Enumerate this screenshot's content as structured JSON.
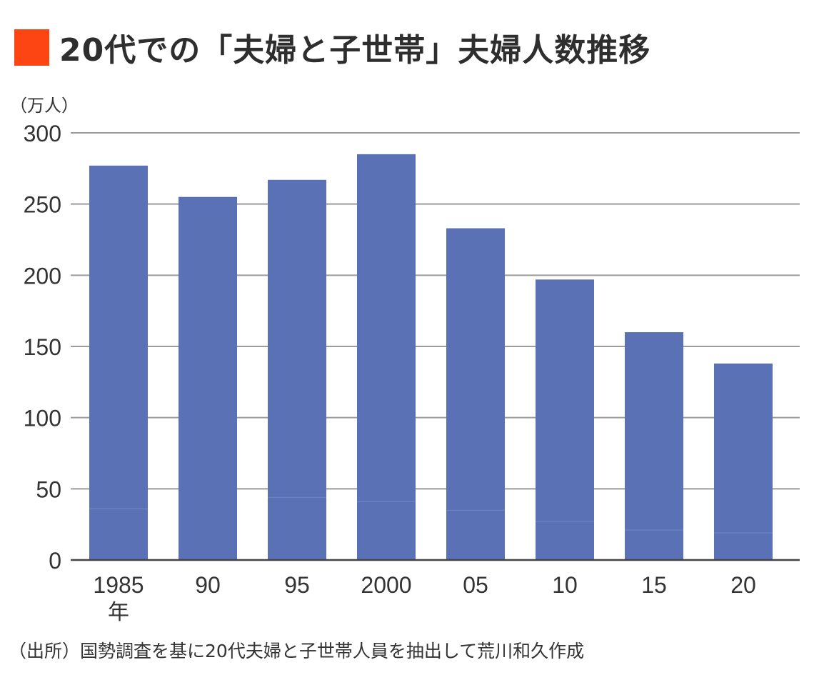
{
  "title": "20代での「夫婦と子世帯」夫婦人数推移",
  "colors": {
    "title_marker": "#fc4512",
    "bar": "#5a72b5",
    "bar_segment_line": "#6c84c4",
    "grid": "#9b9b9b",
    "axis": "#444444"
  },
  "footnote": "（出所）国勢調査を基に20代夫婦と子世帯人員を抽出して荒川和久作成",
  "chart_data": {
    "type": "bar",
    "title": "20代での「夫婦と子世帯」夫婦人数推移",
    "ylabel": "（万人）",
    "xlabel": "",
    "categories": [
      "1985",
      "90",
      "95",
      "2000",
      "05",
      "10",
      "15",
      "20"
    ],
    "first_category_suffix": "年",
    "ylim": [
      0,
      300
    ],
    "yticks": [
      "0",
      "50",
      "100",
      "150",
      "200",
      "250",
      "300"
    ],
    "grid": true,
    "series": [
      {
        "name": "total",
        "values": [
          277,
          255,
          267,
          285,
          233,
          197,
          160,
          138
        ]
      },
      {
        "name": "lower_segment",
        "values": [
          36,
          null,
          44,
          41,
          35,
          27,
          21,
          19
        ]
      }
    ]
  }
}
